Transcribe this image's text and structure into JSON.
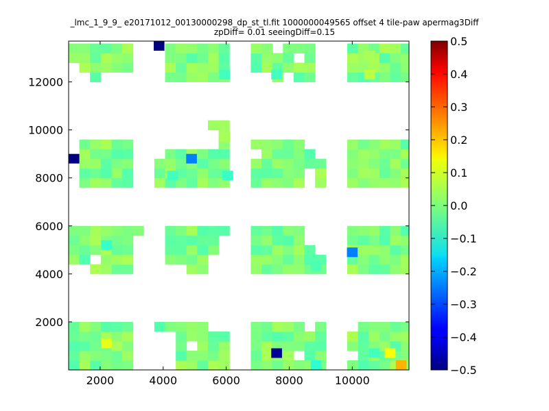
{
  "chart_data": {
    "type": "heatmap",
    "title_line1": "_lmc_1_9_9_ e20171012_00130000298_dp_st_tl.fit 1000000049565 offset 4 tile-paw apermag3Diff",
    "title_line2": "zpDiff= 0.01 seeingDiff=0.15",
    "xlabel": "",
    "ylabel": "",
    "xlim": [
      1000,
      11800
    ],
    "ylim": [
      0,
      13700
    ],
    "xticks": [
      2000,
      4000,
      6000,
      8000,
      10000
    ],
    "yticks": [
      2000,
      4000,
      6000,
      8000,
      10000,
      12000
    ],
    "xtick_labels": [
      "2000",
      "4000",
      "6000",
      "8000",
      "10000"
    ],
    "ytick_labels": [
      "2000",
      "4000",
      "6000",
      "8000",
      "10000",
      "12000"
    ],
    "colormap": "jet",
    "color_range": [
      -0.5,
      0.5
    ],
    "colorbar_ticks": [
      0.5,
      0.4,
      0.3,
      0.2,
      0.1,
      0.0,
      -0.1,
      -0.2,
      -0.3,
      -0.4,
      -0.5
    ],
    "colorbar_tick_labels": [
      "0.5",
      "0.4",
      "0.3",
      "0.2",
      "0.1",
      "0.0",
      "−0.1",
      "−0.2",
      "−0.3",
      "−0.4",
      "−0.5"
    ],
    "cell_size": [
      340,
      400
    ],
    "background_value": 0.0,
    "grid": false,
    "blocks": [
      {
        "x": [
          1000,
          3000
        ],
        "y": [
          12000,
          13700
        ]
      },
      {
        "x": [
          4000,
          6000
        ],
        "y": [
          12000,
          13700
        ]
      },
      {
        "x": [
          6700,
          8900
        ],
        "y": [
          12000,
          13700
        ]
      },
      {
        "x": [
          10000,
          11800
        ],
        "y": [
          12000,
          13700
        ]
      },
      {
        "x": [
          1300,
          3000
        ],
        "y": [
          7800,
          9800
        ]
      },
      {
        "x": [
          3800,
          5300
        ],
        "y": [
          7800,
          9400
        ]
      },
      {
        "x": [
          5300,
          6000
        ],
        "y": [
          7800,
          10300
        ]
      },
      {
        "x": [
          6700,
          9000
        ],
        "y": [
          7800,
          9800
        ]
      },
      {
        "x": [
          10000,
          11800
        ],
        "y": [
          7800,
          9800
        ]
      },
      {
        "x": [
          1000,
          3300
        ],
        "y": [
          3900,
          6100
        ]
      },
      {
        "x": [
          4000,
          6000
        ],
        "y": [
          3900,
          6100
        ]
      },
      {
        "x": [
          6700,
          9000
        ],
        "y": [
          3900,
          6100
        ]
      },
      {
        "x": [
          10000,
          11800
        ],
        "y": [
          3900,
          6100
        ]
      },
      {
        "x": [
          1000,
          3000
        ],
        "y": [
          0,
          2100
        ]
      },
      {
        "x": [
          3800,
          6000
        ],
        "y": [
          0,
          2100
        ]
      },
      {
        "x": [
          6700,
          9000
        ],
        "y": [
          0,
          2100
        ]
      },
      {
        "x": [
          10000,
          11800
        ],
        "y": [
          0,
          2100
        ]
      }
    ],
    "holes": [
      {
        "x": [
          1000,
          1300
        ],
        "y": [
          12000,
          13000
        ]
      },
      {
        "x": [
          2700,
          3000
        ],
        "y": [
          12000,
          12400
        ]
      },
      {
        "x": [
          1000,
          1700
        ],
        "y": [
          12000,
          12400
        ]
      },
      {
        "x": [
          2000,
          2700
        ],
        "y": [
          12000,
          12400
        ]
      },
      {
        "x": [
          4700,
          5300
        ],
        "y": [
          12000,
          12200
        ]
      },
      {
        "x": [
          7400,
          7800
        ],
        "y": [
          13200,
          13700
        ]
      },
      {
        "x": [
          8100,
          8500
        ],
        "y": [
          12800,
          13200
        ]
      },
      {
        "x": [
          6700,
          7400
        ],
        "y": [
          12000,
          12400
        ]
      },
      {
        "x": [
          7800,
          8100
        ],
        "y": [
          12000,
          12400
        ]
      },
      {
        "x": [
          6700,
          7100
        ],
        "y": [
          8800,
          9400
        ]
      },
      {
        "x": [
          8500,
          8800
        ],
        "y": [
          9400,
          9800
        ]
      },
      {
        "x": [
          8800,
          9000
        ],
        "y": [
          8900,
          9800
        ]
      },
      {
        "x": [
          8400,
          8800
        ],
        "y": [
          7800,
          8400
        ]
      },
      {
        "x": [
          5300,
          5600
        ],
        "y": [
          9400,
          10000
        ]
      },
      {
        "x": [
          3800,
          4100
        ],
        "y": [
          8800,
          9400
        ]
      },
      {
        "x": [
          3000,
          3300
        ],
        "y": [
          3900,
          5800
        ]
      },
      {
        "x": [
          1000,
          1700
        ],
        "y": [
          3900,
          4400
        ]
      },
      {
        "x": [
          1300,
          1700
        ],
        "y": [
          5100,
          5400
        ]
      },
      {
        "x": [
          1700,
          2000
        ],
        "y": [
          4600,
          5000
        ]
      },
      {
        "x": [
          5300,
          6000
        ],
        "y": [
          3900,
          4900
        ]
      },
      {
        "x": [
          5600,
          6000
        ],
        "y": [
          4900,
          5800
        ]
      },
      {
        "x": [
          4000,
          4700
        ],
        "y": [
          3900,
          4400
        ]
      },
      {
        "x": [
          8500,
          9000
        ],
        "y": [
          5400,
          6100
        ]
      },
      {
        "x": [
          8800,
          9000
        ],
        "y": [
          4900,
          5400
        ]
      },
      {
        "x": [
          1000,
          1400
        ],
        "y": [
          2000,
          2100
        ]
      },
      {
        "x": [
          3800,
          4400
        ],
        "y": [
          0,
          1700
        ]
      },
      {
        "x": [
          4700,
          5000
        ],
        "y": [
          900,
          1300
        ]
      },
      {
        "x": [
          5300,
          5600
        ],
        "y": [
          1700,
          2100
        ]
      },
      {
        "x": [
          5600,
          6000
        ],
        "y": [
          1700,
          2100
        ]
      },
      {
        "x": [
          8500,
          8800
        ],
        "y": [
          1700,
          2100
        ]
      },
      {
        "x": [
          8100,
          8500
        ],
        "y": [
          500,
          900
        ]
      },
      {
        "x": [
          10000,
          10300
        ],
        "y": [
          1700,
          2100
        ]
      },
      {
        "x": [
          10000,
          10300
        ],
        "y": [
          500,
          900
        ]
      }
    ],
    "highlight_cells": [
      {
        "x": 3870,
        "y": 13500,
        "value": -0.5
      },
      {
        "x": 1170,
        "y": 8800,
        "value": -0.5
      },
      {
        "x": 4900,
        "y": 8800,
        "value": -0.25
      },
      {
        "x": 10000,
        "y": 4900,
        "value": -0.25
      },
      {
        "x": 7600,
        "y": 700,
        "value": -0.48
      },
      {
        "x": 11550,
        "y": 200,
        "value": 0.2
      },
      {
        "x": 11200,
        "y": 700,
        "value": 0.12
      },
      {
        "x": 2200,
        "y": 1100,
        "value": 0.1
      },
      {
        "x": 8850,
        "y": 200,
        "value": -0.08
      },
      {
        "x": 5950,
        "y": 9700,
        "value": 0.04
      },
      {
        "x": 10550,
        "y": 12300,
        "value": 0.06
      },
      {
        "x": 10550,
        "y": 13100,
        "value": 0.04
      },
      {
        "x": 8850,
        "y": 4300,
        "value": -0.05
      },
      {
        "x": 5950,
        "y": 12300,
        "value": -0.06
      },
      {
        "x": 2200,
        "y": 5200,
        "value": -0.07
      },
      {
        "x": 7600,
        "y": 12300,
        "value": -0.06
      },
      {
        "x": 6050,
        "y": 8100,
        "value": -0.07
      },
      {
        "x": 4300,
        "y": 8100,
        "value": -0.06
      },
      {
        "x": 10700,
        "y": 700,
        "value": -0.06
      }
    ]
  }
}
